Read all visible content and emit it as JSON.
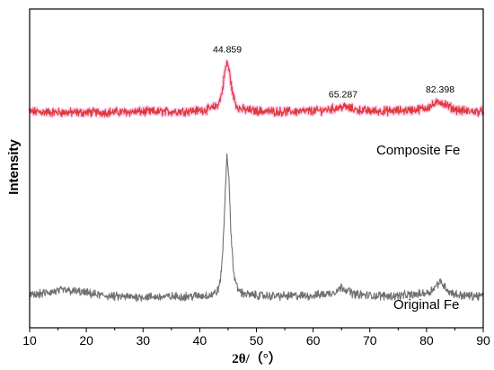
{
  "chart_data": {
    "type": "line",
    "xlabel": "2θ/（°）",
    "ylabel": "Intensity",
    "xlim": [
      10,
      90
    ],
    "ylim": [
      0,
      1
    ],
    "x_ticks": [
      10,
      20,
      30,
      40,
      50,
      60,
      70,
      80,
      90
    ],
    "grid": false,
    "y_tick_labels": false,
    "series": [
      {
        "name": "Composite Fe",
        "color": "#e03a3a",
        "band_color": "#f3a6e2",
        "x": [
          10,
          14,
          18,
          22,
          26,
          30,
          34,
          38,
          40,
          41,
          42,
          43,
          43.5,
          44,
          44.4,
          44.859,
          45.3,
          45.8,
          46.4,
          47,
          48,
          50,
          54,
          58,
          61,
          63,
          64.5,
          65.287,
          66.2,
          67.5,
          70,
          74,
          78,
          80,
          81.3,
          82.398,
          83.4,
          84.6,
          86,
          88,
          90
        ],
        "y": [
          0.678,
          0.676,
          0.675,
          0.676,
          0.677,
          0.678,
          0.678,
          0.68,
          0.682,
          0.684,
          0.688,
          0.696,
          0.71,
          0.745,
          0.8,
          0.835,
          0.795,
          0.735,
          0.7,
          0.688,
          0.684,
          0.68,
          0.678,
          0.679,
          0.681,
          0.686,
          0.69,
          0.694,
          0.69,
          0.684,
          0.68,
          0.68,
          0.684,
          0.69,
          0.7,
          0.71,
          0.7,
          0.688,
          0.681,
          0.679,
          0.678
        ]
      },
      {
        "name": "Original Fe",
        "color": "#707070",
        "x": [
          10,
          13,
          16,
          19,
          22,
          25,
          28,
          32,
          36,
          40,
          42,
          43,
          43.6,
          44.1,
          44.5,
          44.8,
          45.1,
          45.5,
          46,
          46.6,
          47.5,
          49,
          52,
          56,
          60,
          63,
          64.3,
          65.1,
          66,
          67.2,
          70,
          74,
          78,
          80.5,
          81.6,
          82.3,
          83,
          84,
          85.5,
          88,
          90
        ],
        "y": [
          0.1,
          0.11,
          0.118,
          0.112,
          0.103,
          0.098,
          0.097,
          0.097,
          0.098,
          0.1,
          0.103,
          0.112,
          0.14,
          0.25,
          0.42,
          0.55,
          0.48,
          0.3,
          0.17,
          0.125,
          0.108,
          0.103,
          0.1,
          0.1,
          0.101,
          0.108,
          0.118,
          0.128,
          0.118,
          0.106,
          0.101,
          0.1,
          0.104,
          0.112,
          0.13,
          0.145,
          0.135,
          0.113,
          0.103,
          0.1,
          0.1
        ]
      }
    ],
    "annotations": [
      {
        "text": "44.859",
        "x": 44.859,
        "y": 0.835,
        "series": "Composite Fe"
      },
      {
        "text": "65.287",
        "x": 65.287,
        "y": 0.694,
        "series": "Composite Fe"
      },
      {
        "text": "82.398",
        "x": 82.398,
        "y": 0.71,
        "series": "Composite Fe"
      }
    ],
    "series_labels": [
      "Composite Fe",
      "Original Fe"
    ]
  }
}
